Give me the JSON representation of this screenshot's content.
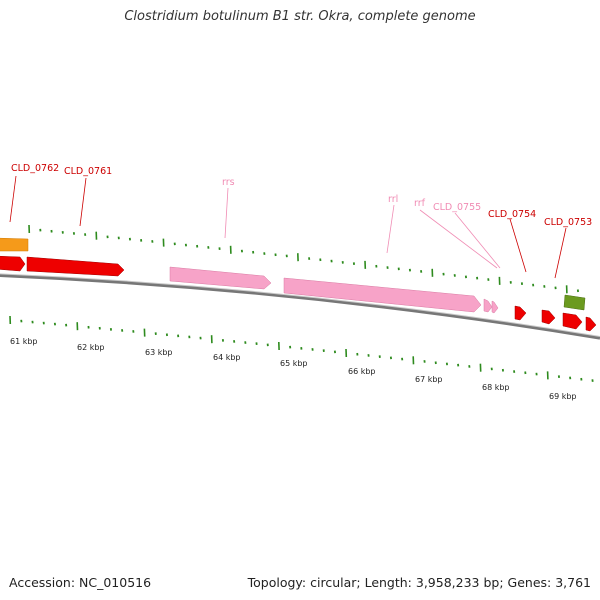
{
  "title": "Clostridium botulinum B1 str. Okra, complete genome",
  "footer": {
    "accession": "Accession: NC_010516",
    "stats": "Topology: circular; Length: 3,958,233 bp; Genes: 3,761"
  },
  "scale_labels": [
    "61 kbp",
    "62 kbp",
    "63 kbp",
    "64 kbp",
    "65 kbp",
    "66 kbp",
    "67 kbp",
    "68 kbp",
    "69 kbp"
  ],
  "gene_labels": [
    {
      "text": "CLD_0762",
      "color": "#cc0000"
    },
    {
      "text": "CLD_0761",
      "color": "#cc0000"
    },
    {
      "text": "rrs",
      "color": "#f08cb4"
    },
    {
      "text": "rrl",
      "color": "#f08cb4"
    },
    {
      "text": "rrf",
      "color": "#f08cb4"
    },
    {
      "text": "CLD_0755",
      "color": "#f08cb4"
    },
    {
      "text": "CLD_0754",
      "color": "#cc0000"
    },
    {
      "text": "CLD_0753",
      "color": "#cc0000"
    }
  ],
  "colors": {
    "cds": "#ee0000",
    "rrna": "#f7a3c8",
    "orange_feature": "#f59a1a",
    "green_feature": "#6b9a1f",
    "tick": "#2e8b1e",
    "backbone": "#8a8a8a"
  }
}
